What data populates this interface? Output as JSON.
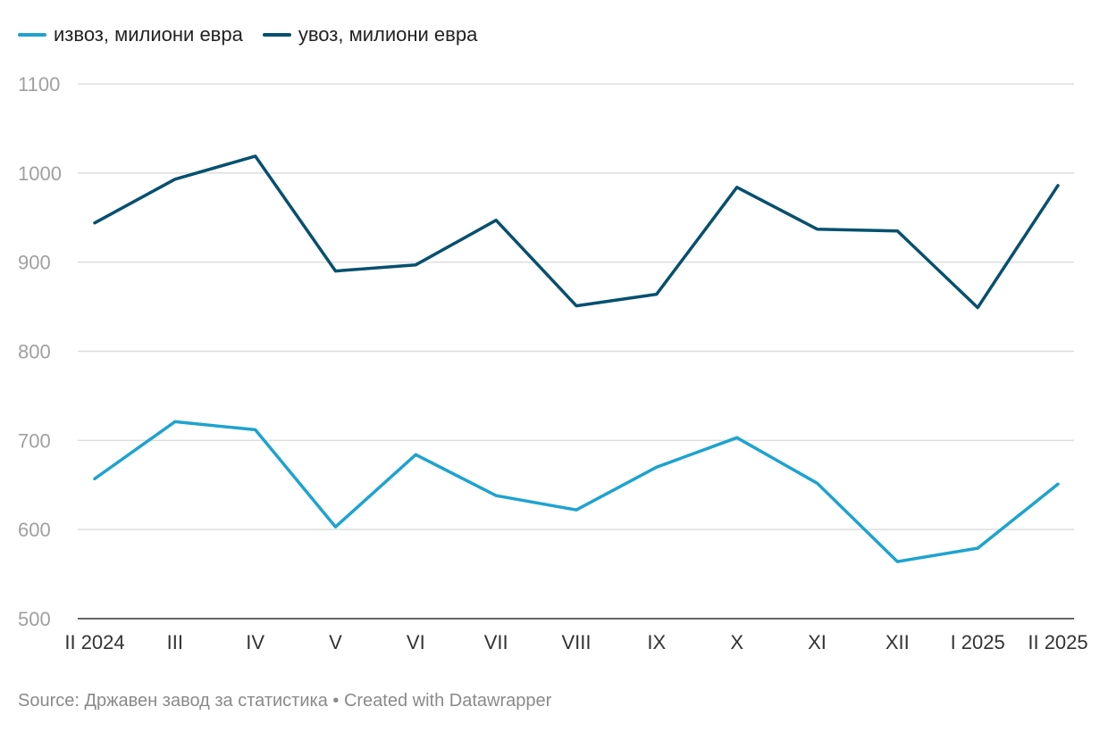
{
  "chart_data": {
    "type": "line",
    "title": "",
    "xlabel": "",
    "ylabel": "",
    "categories": [
      "II 2024",
      "III",
      "IV",
      "V",
      "VI",
      "VII",
      "VIII",
      "IX",
      "X",
      "XI",
      "XII",
      "I 2025",
      "II 2025"
    ],
    "series": [
      {
        "name": "извоз, милиони евра",
        "color": "#1ea3cf",
        "values": [
          657,
          721,
          712,
          603,
          684,
          638,
          622,
          670,
          703,
          652,
          564,
          579,
          651
        ]
      },
      {
        "name": "увоз, милиони евра",
        "color": "#06506f",
        "values": [
          944,
          993,
          1019,
          890,
          897,
          947,
          851,
          864,
          984,
          937,
          935,
          849,
          986
        ]
      }
    ],
    "ylim": [
      500,
      1100
    ],
    "yticks": [
      500,
      600,
      700,
      800,
      900,
      1000,
      1100
    ],
    "grid": true,
    "legend": "top-left",
    "colors": {
      "grid": "#dddddd",
      "axis": "#333333",
      "ytick_text": "#a0a0a0",
      "xtick_text": "#333333"
    }
  },
  "footer": {
    "text": "Source: Државен завод за статистика • Created with Datawrapper"
  }
}
